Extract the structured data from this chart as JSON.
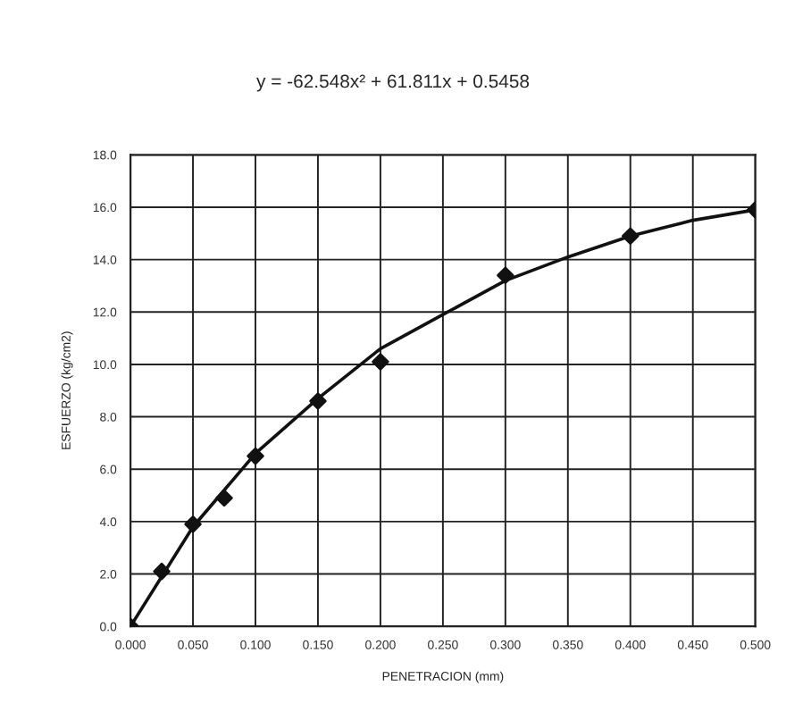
{
  "chart_data": {
    "type": "scatter",
    "title": "y = -62.548x² + 61.811x + 0.5458",
    "xlabel": "PENETRACION (mm)",
    "ylabel": "ESFUERZO (kg/cm2)",
    "series": [
      {
        "color": "#111111",
        "marker": "diamond",
        "x": [
          0,
          0.025,
          0.05,
          0.075,
          0.1,
          0.15,
          0.2,
          0.3,
          0.4,
          0.5
        ],
        "values": [
          0,
          2.1,
          3.9,
          4.9,
          6.5,
          8.6,
          10.1,
          13.4,
          14.9,
          15.9
        ]
      },
      {
        "type": "line",
        "color": "#111111",
        "line_style": "solid",
        "x": [
          0,
          0.05,
          0.1,
          0.15,
          0.2,
          0.25,
          0.3,
          0.35,
          0.4,
          0.45,
          0.5
        ],
        "values": [
          0,
          3.8,
          6.6,
          8.7,
          10.6,
          11.9,
          13.2,
          14.1,
          14.9,
          15.5,
          15.9
        ]
      }
    ],
    "xlim": [
      0,
      0.5
    ],
    "ylim": [
      0,
      18
    ],
    "xticks": [
      {
        "value": 0,
        "label": "0.000"
      },
      {
        "value": 0.05,
        "label": "0.050"
      },
      {
        "value": 0.1,
        "label": "0.100"
      },
      {
        "value": 0.15,
        "label": "0.150"
      },
      {
        "value": 0.2,
        "label": "0.200"
      },
      {
        "value": 0.25,
        "label": "0.250"
      },
      {
        "value": 0.3,
        "label": "0.300"
      },
      {
        "value": 0.35,
        "label": "0.350"
      },
      {
        "value": 0.4,
        "label": "0.400"
      },
      {
        "value": 0.45,
        "label": "0.450"
      },
      {
        "value": 0.5,
        "label": "0.500"
      }
    ],
    "yticks": [
      {
        "value": 0,
        "label": "0.0"
      },
      {
        "value": 2,
        "label": "2.0"
      },
      {
        "value": 4,
        "label": "4.0"
      },
      {
        "value": 6,
        "label": "6.0"
      },
      {
        "value": 8,
        "label": "8.0"
      },
      {
        "value": 10,
        "label": "10.0"
      },
      {
        "value": 12,
        "label": "12.0"
      },
      {
        "value": 14,
        "label": "14.0"
      },
      {
        "value": 16,
        "label": "16.0"
      },
      {
        "value": 18,
        "label": "18.0"
      }
    ],
    "grid": true,
    "legend": false
  }
}
